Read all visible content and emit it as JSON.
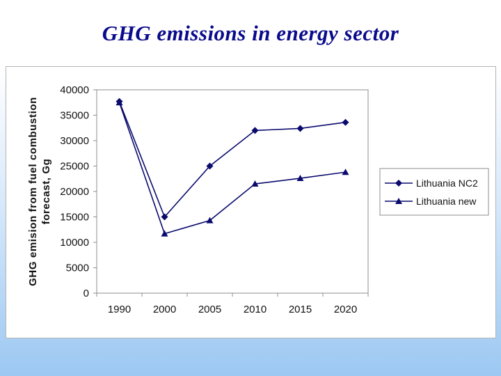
{
  "slide": {
    "title": "GHG emissions in energy sector"
  },
  "chart_data": {
    "type": "line",
    "title": "",
    "ylabel_line1": "GHG emision from fuel combustion",
    "ylabel_line2": "forecast, Gg",
    "xlabel": "",
    "categories": [
      "1990",
      "2000",
      "2005",
      "2010",
      "2015",
      "2020"
    ],
    "ylim": [
      0,
      40000
    ],
    "yticks": [
      0,
      5000,
      10000,
      15000,
      20000,
      25000,
      30000,
      35000,
      40000
    ],
    "grid": false,
    "legend": "right",
    "series": [
      {
        "name": "Lithuania NC2",
        "marker": "diamond",
        "color": "#0a0a6e",
        "values": [
          37700,
          15000,
          25000,
          32000,
          32400,
          33600
        ]
      },
      {
        "name": "Lithuania new",
        "marker": "triangle",
        "color": "#0a0a6e",
        "values": [
          37500,
          11700,
          14300,
          21500,
          22600,
          23800
        ]
      }
    ]
  }
}
